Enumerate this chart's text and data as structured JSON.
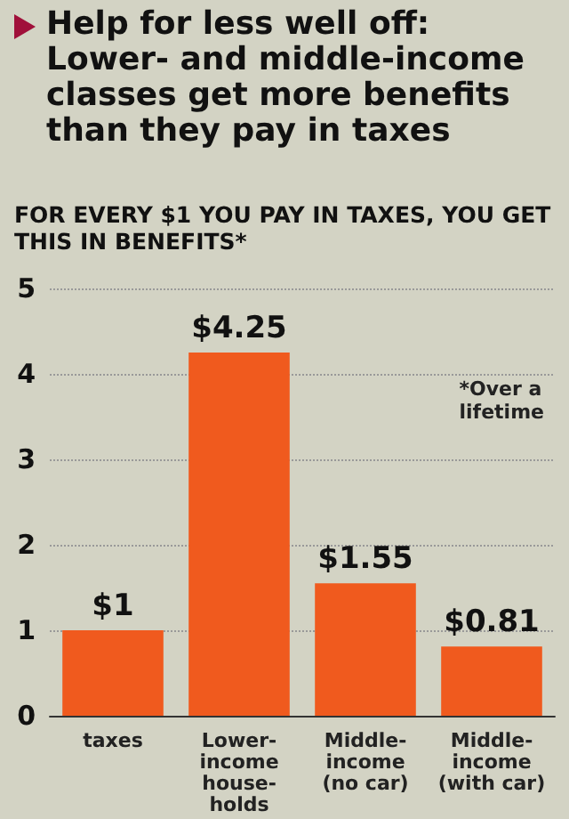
{
  "chart_data": {
    "type": "bar",
    "title": "Help for less well off: Lower- and middle-income classes get more benefits than they pay in taxes",
    "subtitle": "FOR EVERY $1 YOU PAY IN TAXES, YOU GET THIS IN BENEFITS*",
    "categories": [
      "taxes",
      "Lower-\nincome\nhouse-\nholds",
      "Middle-\nincome\n(no car)",
      "Middle-\nincome\n(with car)"
    ],
    "values": [
      1,
      4.25,
      1.55,
      0.81
    ],
    "value_labels": [
      "$1",
      "$4.25",
      "$1.55",
      "$0.81"
    ],
    "color": "#f05a1e",
    "ylim": [
      0,
      5
    ],
    "yticks": [
      0,
      1,
      2,
      3,
      4,
      5
    ],
    "grid": "y",
    "annotations": [
      "*Over a lifetime"
    ]
  }
}
